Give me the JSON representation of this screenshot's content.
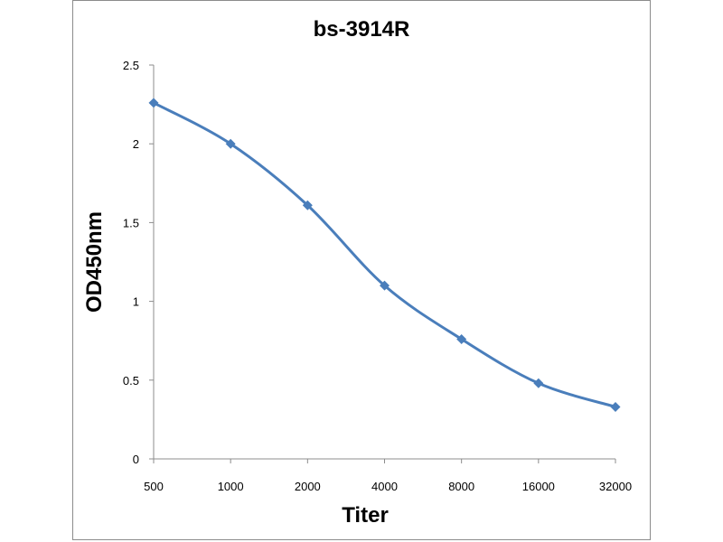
{
  "chart_data": {
    "type": "line",
    "title": "bs-3914R",
    "xlabel": "Titer",
    "ylabel": "OD450nm",
    "categories": [
      "500",
      "1000",
      "2000",
      "4000",
      "8000",
      "16000",
      "32000"
    ],
    "series": [
      {
        "values": [
          2.26,
          2.0,
          1.61,
          1.1,
          0.76,
          0.48,
          0.33
        ]
      }
    ],
    "ylim": [
      0,
      2.5
    ],
    "yticks": [
      "0",
      "0.5",
      "1",
      "1.5",
      "2",
      "2.5"
    ],
    "grid": false,
    "legend": "none",
    "line_color": "#4a7ebb"
  }
}
